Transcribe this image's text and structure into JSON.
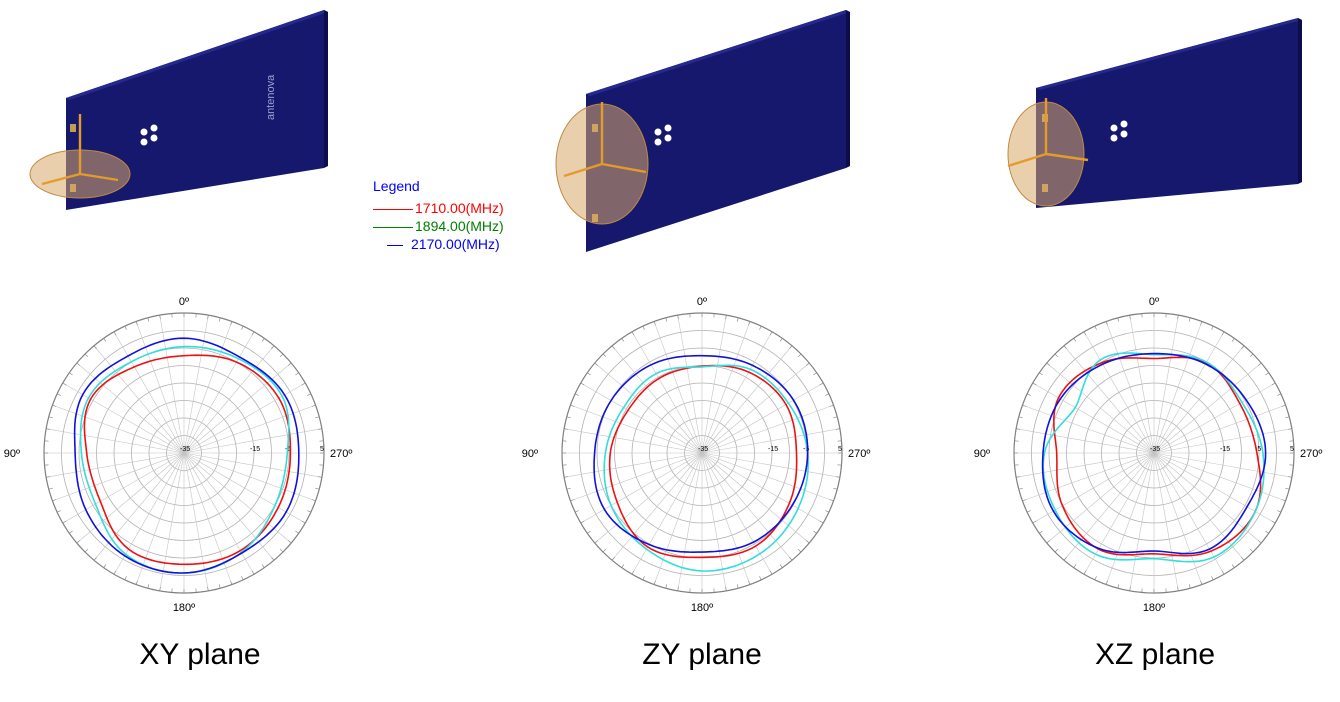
{
  "legend": {
    "title": "Legend",
    "entries": [
      {
        "label": "1710.00(MHz)",
        "color": "#ff0000"
      },
      {
        "label": "1894.00(MHz)",
        "color": "#008000"
      },
      {
        "label": "2170.00(MHz)",
        "color": "#0000ff"
      }
    ],
    "title_color": "#0000ff"
  },
  "series_colors": {
    "1710": "#ee1111",
    "1894": "#33dddd",
    "2170": "#1111dd"
  },
  "board_logo_text": "antenova",
  "chart_data": [
    {
      "type": "polar",
      "plane": "XY plane",
      "angle_labels": {
        "top": "0º",
        "left": "90º",
        "right": "270º",
        "bottom": "180º"
      },
      "radial_tick_labels": [
        "-35",
        "-15",
        "-5",
        "5"
      ],
      "radial_range": [
        -35,
        5
      ],
      "grid": true,
      "angles_deg": [
        0,
        30,
        60,
        90,
        120,
        150,
        180,
        210,
        240,
        270,
        300,
        330
      ],
      "series": [
        {
          "key": "1710",
          "values_db": [
            -7.2,
            -6.6,
            -4.2,
            -7.2,
            -7.4,
            -3.3,
            -3.2,
            -2.8,
            -3.9,
            -4.6,
            -3.7,
            -5.0
          ]
        },
        {
          "key": "1894",
          "values_db": [
            -4.6,
            -4.9,
            -3.5,
            -5.7,
            -5.8,
            -1.6,
            -0.7,
            -2.2,
            -5.0,
            -5.5,
            -2.6,
            -3.9
          ]
        },
        {
          "key": "2170",
          "values_db": [
            -2.2,
            -3.0,
            -1.6,
            -3.9,
            -2.6,
            -1.1,
            -0.7,
            -2.0,
            -1.3,
            -2.2,
            -1.8,
            -3.3
          ]
        }
      ]
    },
    {
      "type": "polar",
      "plane": "ZY plane",
      "angle_labels": {
        "top": "0º",
        "left": "90º",
        "right": "270º",
        "bottom": "180º"
      },
      "radial_tick_labels": [
        "-35",
        "-15",
        "-5",
        "5"
      ],
      "radial_range": [
        -35,
        5
      ],
      "grid": true,
      "angles_deg": [
        0,
        30,
        60,
        90,
        120,
        150,
        180,
        210,
        240,
        270,
        300,
        330
      ],
      "series": [
        {
          "key": "1710",
          "values_db": [
            -10.2,
            -10.4,
            -10.6,
            -8.8,
            -7.0,
            -4.0,
            -5.2,
            -4.3,
            -6.2,
            -8.0,
            -7.3,
            -8.3
          ]
        },
        {
          "key": "1894",
          "values_db": [
            -10.4,
            -8.8,
            -9.1,
            -7.4,
            -5.0,
            -3.3,
            -1.3,
            -1.8,
            -3.3,
            -4.8,
            -6.5,
            -7.4
          ]
        },
        {
          "key": "2170",
          "values_db": [
            -7.2,
            -5.9,
            -5.0,
            -4.3,
            -2.8,
            -4.8,
            -6.7,
            -5.6,
            -5.2,
            -4.8,
            -4.8,
            -6.1
          ]
        }
      ]
    },
    {
      "type": "polar",
      "plane": "XZ plane",
      "angle_labels": {
        "top": "0º",
        "left": "90º",
        "right": "270º",
        "bottom": "180º"
      },
      "radial_tick_labels": [
        "-35",
        "-15",
        "-5",
        "5"
      ],
      "radial_range": [
        -35,
        5
      ],
      "grid": true,
      "angles_deg": [
        0,
        30,
        60,
        90,
        120,
        150,
        180,
        210,
        240,
        270,
        300,
        330
      ],
      "series": [
        {
          "key": "1710",
          "values_db": [
            -8.0,
            -5.2,
            -3.5,
            -7.2,
            -4.8,
            -3.3,
            -6.2,
            -2.6,
            -1.6,
            -5.6,
            -6.7,
            -5.2
          ]
        },
        {
          "key": "1894",
          "values_db": [
            -6.9,
            -4.3,
            -9.0,
            -3.7,
            -2.4,
            -1.6,
            -4.8,
            -0.7,
            -1.6,
            -3.9,
            -6.0,
            -5.0
          ]
        },
        {
          "key": "2170",
          "values_db": [
            -6.6,
            -5.7,
            -4.1,
            -3.3,
            -1.8,
            -3.5,
            -7.0,
            -3.3,
            -4.3,
            -3.1,
            -4.6,
            -5.6
          ]
        }
      ]
    }
  ]
}
